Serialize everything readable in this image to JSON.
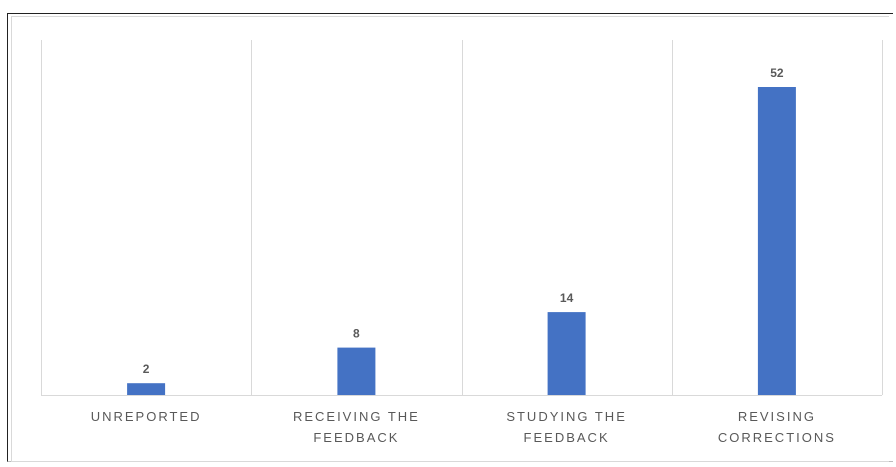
{
  "chart_data": {
    "type": "bar",
    "categories": [
      [
        "UNREPORTED"
      ],
      [
        "RECEIVING THE",
        "FEEDBACK"
      ],
      [
        "STUDYING THE",
        "FEEDBACK"
      ],
      [
        "REVISING",
        "CORRECTIONS"
      ]
    ],
    "values": [
      2,
      8,
      14,
      52
    ],
    "title": "",
    "xlabel": "",
    "ylabel": "",
    "ylim": [
      0,
      60
    ],
    "grid": "vertical category separators",
    "bar_color": "#4472c4",
    "data_labels": true
  }
}
